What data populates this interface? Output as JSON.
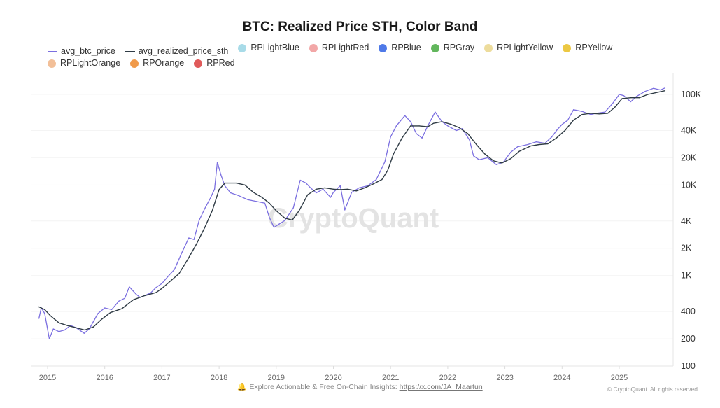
{
  "chart_data": {
    "type": "line",
    "title": "BTC: Realized Price STH, Color Band",
    "xlabel": "",
    "ylabel": "",
    "yscale": "log",
    "ylim": [
      100,
      140000
    ],
    "xlim": [
      2014.85,
      2025.85
    ],
    "y_ticks": [
      {
        "value": 100000,
        "label": "100K"
      },
      {
        "value": 40000,
        "label": "40K"
      },
      {
        "value": 20000,
        "label": "20K"
      },
      {
        "value": 10000,
        "label": "10K"
      },
      {
        "value": 4000,
        "label": "4K"
      },
      {
        "value": 2000,
        "label": "2K"
      },
      {
        "value": 1000,
        "label": "1K"
      },
      {
        "value": 400,
        "label": "400"
      },
      {
        "value": 200,
        "label": "200"
      },
      {
        "value": 100,
        "label": "100"
      }
    ],
    "x_ticks": [
      {
        "value": 2015,
        "label": "2015"
      },
      {
        "value": 2016,
        "label": "2016"
      },
      {
        "value": 2017,
        "label": "2017"
      },
      {
        "value": 2018,
        "label": "2018"
      },
      {
        "value": 2019,
        "label": "2019"
      },
      {
        "value": 2020,
        "label": "2020"
      },
      {
        "value": 2021,
        "label": "2021"
      },
      {
        "value": 2022,
        "label": "2022"
      },
      {
        "value": 2023,
        "label": "2023"
      },
      {
        "value": 2024,
        "label": "2024"
      },
      {
        "value": 2025,
        "label": "2025"
      }
    ],
    "grid": true,
    "legend_position": "top",
    "legend": [
      {
        "name": "avg_btc_price",
        "type": "line",
        "color": "#7b6fe0"
      },
      {
        "name": "avg_realized_price_sth",
        "type": "line",
        "color": "#2f3b45"
      },
      {
        "name": "RPLightBlue",
        "type": "dot",
        "color": "#a8dbe8"
      },
      {
        "name": "RPLightRed",
        "type": "dot",
        "color": "#f2a7a7"
      },
      {
        "name": "RPBlue",
        "type": "dot",
        "color": "#4e79e8"
      },
      {
        "name": "RPGray",
        "type": "dot",
        "color": "#62b65c"
      },
      {
        "name": "RPLightYellow",
        "type": "dot",
        "color": "#eddc9c"
      },
      {
        "name": "RPYellow",
        "type": "dot",
        "color": "#ecc843"
      },
      {
        "name": "RPLightOrange",
        "type": "dot",
        "color": "#f2bf98"
      },
      {
        "name": "RPOrange",
        "type": "dot",
        "color": "#f09a4a"
      },
      {
        "name": "RPRed",
        "type": "dot",
        "color": "#e05a5a"
      }
    ],
    "series": [
      {
        "name": "avg_btc_price",
        "color": "#7b6fe0",
        "points": [
          [
            2014.85,
            336
          ],
          [
            2014.89,
            440
          ],
          [
            2014.95,
            380
          ],
          [
            2015.03,
            200
          ],
          [
            2015.1,
            257
          ],
          [
            2015.2,
            240
          ],
          [
            2015.3,
            250
          ],
          [
            2015.4,
            281
          ],
          [
            2015.5,
            265
          ],
          [
            2015.64,
            230
          ],
          [
            2015.73,
            257
          ],
          [
            2015.88,
            380
          ],
          [
            2016.0,
            438
          ],
          [
            2016.12,
            420
          ],
          [
            2016.25,
            523
          ],
          [
            2016.35,
            560
          ],
          [
            2016.43,
            750
          ],
          [
            2016.55,
            620
          ],
          [
            2016.62,
            572
          ],
          [
            2016.8,
            640
          ],
          [
            2016.9,
            740
          ],
          [
            2017.0,
            817
          ],
          [
            2017.12,
            1000
          ],
          [
            2017.22,
            1170
          ],
          [
            2017.35,
            1800
          ],
          [
            2017.47,
            2600
          ],
          [
            2017.56,
            2500
          ],
          [
            2017.65,
            4060
          ],
          [
            2017.75,
            5500
          ],
          [
            2017.85,
            7200
          ],
          [
            2017.92,
            9000
          ],
          [
            2017.97,
            17900
          ],
          [
            2018.03,
            13000
          ],
          [
            2018.1,
            9800
          ],
          [
            2018.2,
            8200
          ],
          [
            2018.35,
            7600
          ],
          [
            2018.5,
            6900
          ],
          [
            2018.65,
            6600
          ],
          [
            2018.8,
            6300
          ],
          [
            2018.88,
            4400
          ],
          [
            2018.96,
            3400
          ],
          [
            2019.05,
            3700
          ],
          [
            2019.15,
            4060
          ],
          [
            2019.3,
            5600
          ],
          [
            2019.42,
            11300
          ],
          [
            2019.52,
            10500
          ],
          [
            2019.6,
            9300
          ],
          [
            2019.7,
            8200
          ],
          [
            2019.82,
            9000
          ],
          [
            2019.95,
            7300
          ],
          [
            2020.0,
            8300
          ],
          [
            2020.12,
            9800
          ],
          [
            2020.2,
            5300
          ],
          [
            2020.32,
            8300
          ],
          [
            2020.45,
            9300
          ],
          [
            2020.6,
            9800
          ],
          [
            2020.75,
            11500
          ],
          [
            2020.9,
            18000
          ],
          [
            2021.0,
            34000
          ],
          [
            2021.1,
            45000
          ],
          [
            2021.25,
            58400
          ],
          [
            2021.35,
            50000
          ],
          [
            2021.45,
            37000
          ],
          [
            2021.55,
            33000
          ],
          [
            2021.65,
            45000
          ],
          [
            2021.78,
            64000
          ],
          [
            2021.9,
            50000
          ],
          [
            2022.0,
            45000
          ],
          [
            2022.15,
            40000
          ],
          [
            2022.25,
            42000
          ],
          [
            2022.38,
            31500
          ],
          [
            2022.45,
            21000
          ],
          [
            2022.55,
            19000
          ],
          [
            2022.7,
            20000
          ],
          [
            2022.85,
            16800
          ],
          [
            2022.97,
            17800
          ],
          [
            2023.1,
            23000
          ],
          [
            2023.22,
            26400
          ],
          [
            2023.4,
            28000
          ],
          [
            2023.55,
            30000
          ],
          [
            2023.7,
            28900
          ],
          [
            2023.82,
            34000
          ],
          [
            2023.92,
            41300
          ],
          [
            2024.0,
            46700
          ],
          [
            2024.1,
            52000
          ],
          [
            2024.2,
            67900
          ],
          [
            2024.35,
            65000
          ],
          [
            2024.5,
            60000
          ],
          [
            2024.6,
            62000
          ],
          [
            2024.75,
            64000
          ],
          [
            2024.88,
            79000
          ],
          [
            2025.0,
            100000
          ],
          [
            2025.08,
            97000
          ],
          [
            2025.2,
            83000
          ],
          [
            2025.3,
            95000
          ],
          [
            2025.45,
            108000
          ],
          [
            2025.6,
            117000
          ],
          [
            2025.72,
            112000
          ],
          [
            2025.8,
            118000
          ]
        ]
      },
      {
        "name": "avg_realized_price_sth",
        "color": "#2f3b45",
        "points": [
          [
            2014.85,
            450
          ],
          [
            2014.95,
            420
          ],
          [
            2015.05,
            360
          ],
          [
            2015.2,
            300
          ],
          [
            2015.35,
            280
          ],
          [
            2015.5,
            265
          ],
          [
            2015.65,
            250
          ],
          [
            2015.8,
            270
          ],
          [
            2015.95,
            330
          ],
          [
            2016.1,
            390
          ],
          [
            2016.3,
            430
          ],
          [
            2016.5,
            540
          ],
          [
            2016.7,
            600
          ],
          [
            2016.9,
            650
          ],
          [
            2017.0,
            720
          ],
          [
            2017.15,
            870
          ],
          [
            2017.3,
            1050
          ],
          [
            2017.45,
            1500
          ],
          [
            2017.6,
            2200
          ],
          [
            2017.75,
            3400
          ],
          [
            2017.88,
            5200
          ],
          [
            2018.0,
            8900
          ],
          [
            2018.1,
            10500
          ],
          [
            2018.3,
            10500
          ],
          [
            2018.45,
            10000
          ],
          [
            2018.6,
            8300
          ],
          [
            2018.75,
            7300
          ],
          [
            2018.88,
            6300
          ],
          [
            2019.0,
            5200
          ],
          [
            2019.15,
            4300
          ],
          [
            2019.28,
            4100
          ],
          [
            2019.4,
            5200
          ],
          [
            2019.55,
            7800
          ],
          [
            2019.7,
            9000
          ],
          [
            2019.85,
            9300
          ],
          [
            2020.0,
            9000
          ],
          [
            2020.12,
            8900
          ],
          [
            2020.25,
            9000
          ],
          [
            2020.4,
            8600
          ],
          [
            2020.55,
            9300
          ],
          [
            2020.7,
            10300
          ],
          [
            2020.85,
            11500
          ],
          [
            2020.95,
            14500
          ],
          [
            2021.05,
            22000
          ],
          [
            2021.2,
            33000
          ],
          [
            2021.35,
            45000
          ],
          [
            2021.5,
            45000
          ],
          [
            2021.65,
            44000
          ],
          [
            2021.75,
            48000
          ],
          [
            2021.9,
            50000
          ],
          [
            2022.05,
            47000
          ],
          [
            2022.2,
            43000
          ],
          [
            2022.35,
            37000
          ],
          [
            2022.5,
            28000
          ],
          [
            2022.65,
            22000
          ],
          [
            2022.8,
            18500
          ],
          [
            2022.95,
            17500
          ],
          [
            2023.1,
            19500
          ],
          [
            2023.25,
            23500
          ],
          [
            2023.45,
            27000
          ],
          [
            2023.6,
            28000
          ],
          [
            2023.75,
            28500
          ],
          [
            2023.9,
            33000
          ],
          [
            2024.05,
            40000
          ],
          [
            2024.2,
            52000
          ],
          [
            2024.35,
            60000
          ],
          [
            2024.5,
            62000
          ],
          [
            2024.65,
            61000
          ],
          [
            2024.8,
            62000
          ],
          [
            2024.92,
            72000
          ],
          [
            2025.05,
            90000
          ],
          [
            2025.2,
            92000
          ],
          [
            2025.35,
            92000
          ],
          [
            2025.5,
            100000
          ],
          [
            2025.65,
            105000
          ],
          [
            2025.8,
            110000
          ]
        ]
      }
    ]
  },
  "watermark": "CryptoQuant",
  "footer": {
    "note": "Explore Actionable & Free On-Chain Insights: ",
    "link": "https://x.com/JA_Maartun",
    "copyright": "© CryptoQuant. All rights reserved"
  }
}
